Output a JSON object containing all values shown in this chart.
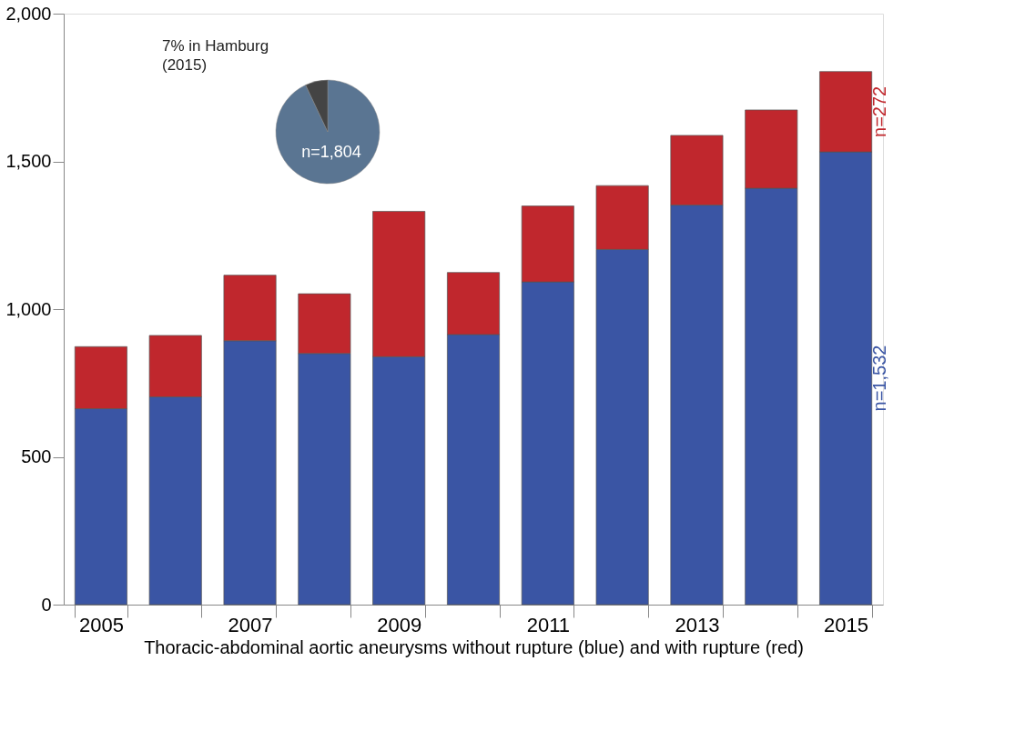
{
  "chart_data": [
    {
      "type": "bar",
      "stacked": true,
      "xlabel": "Thoracic-abdominal aortic aneurysms without rupture (blue) and with rupture (red)",
      "categories": [
        "2005",
        null,
        "2007",
        null,
        "2009",
        null,
        "2011",
        null,
        "2013",
        null,
        "2015"
      ],
      "series": [
        {
          "color": "#3a55a4",
          "values": [
            663,
            703,
            893,
            850,
            839,
            914,
            1092,
            1202,
            1352,
            1409,
            1532
          ],
          "value_labels": [
            null,
            null,
            null,
            null,
            null,
            null,
            null,
            null,
            null,
            null,
            "n=1,532"
          ]
        },
        {
          "color": "#c0272d",
          "values": [
            210,
            208,
            222,
            202,
            492,
            210,
            257,
            216,
            236,
            265,
            272
          ],
          "value_labels": [
            null,
            null,
            null,
            null,
            null,
            null,
            null,
            null,
            null,
            null,
            "n=272"
          ]
        }
      ],
      "ylim": [
        0,
        2000
      ],
      "yticks": [
        {
          "value": 0,
          "label": "0"
        },
        {
          "value": 500,
          "label": "500"
        },
        {
          "value": 1000,
          "label": "1,000"
        },
        {
          "value": 1500,
          "label": "1,500"
        },
        {
          "value": 2000,
          "label": "2,000"
        }
      ],
      "grid": false
    },
    {
      "type": "pie",
      "categories": [
        null,
        null
      ],
      "values": [
        93,
        7
      ],
      "colors": [
        "#5a7592",
        "#444444"
      ],
      "annotations": [
        "7% in Hamburg\n(2015)",
        "n=1,804"
      ]
    }
  ]
}
